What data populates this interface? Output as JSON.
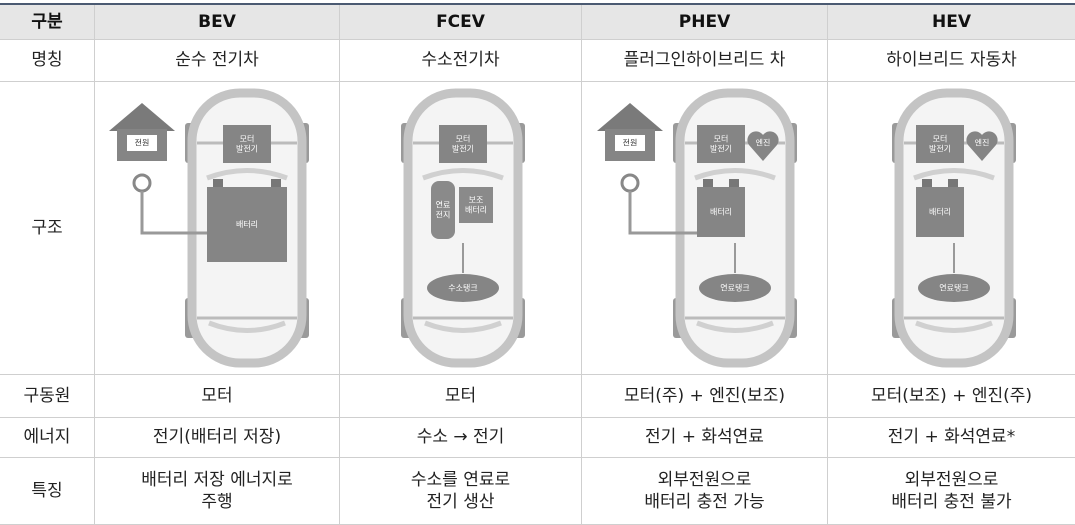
{
  "table": {
    "header": [
      "구분",
      "BEV",
      "FCEV",
      "PHEV",
      "HEV"
    ],
    "rows": [
      {
        "label": "명칭",
        "cells": [
          "순수 전기차",
          "수소전기차",
          "플러그인하이브리드 차",
          "하이브리드 자동차"
        ]
      },
      {
        "label": "구조",
        "diagrams": [
          {
            "power": "전원",
            "motor": [
              "모터",
              "발전기"
            ],
            "battery": "배터리"
          },
          {
            "motor": [
              "모터",
              "발전기"
            ],
            "fuel_cell": [
              "연료",
              "전지"
            ],
            "aux_battery": [
              "보조",
              "배터리"
            ],
            "tank": "수소탱크"
          },
          {
            "power": "전원",
            "motor": [
              "모터",
              "발전기"
            ],
            "engine": "엔진",
            "battery": "배터리",
            "tank": "연료탱크"
          },
          {
            "motor": [
              "모터",
              "발전기"
            ],
            "engine": "엔진",
            "battery": "배터리",
            "tank": "연료탱크"
          }
        ]
      },
      {
        "label": "구동원",
        "cells": [
          "모터",
          "모터",
          "모터(주) + 엔진(보조)",
          "모터(보조) + 엔진(주)"
        ]
      },
      {
        "label": "에너지",
        "cells": [
          "전기(배터리 저장)",
          "수소 → 전기",
          "전기 + 화석연료",
          "전기 + 화석연료*"
        ]
      },
      {
        "label": "특징",
        "cells": [
          [
            "배터리 저장 에너지로",
            "주행"
          ],
          [
            "수소를 연료로",
            "전기 생산"
          ],
          [
            "외부전원으로",
            "배터리 충전 가능"
          ],
          [
            "외부전원으로",
            "배터리 충전 불가"
          ]
        ]
      }
    ]
  }
}
